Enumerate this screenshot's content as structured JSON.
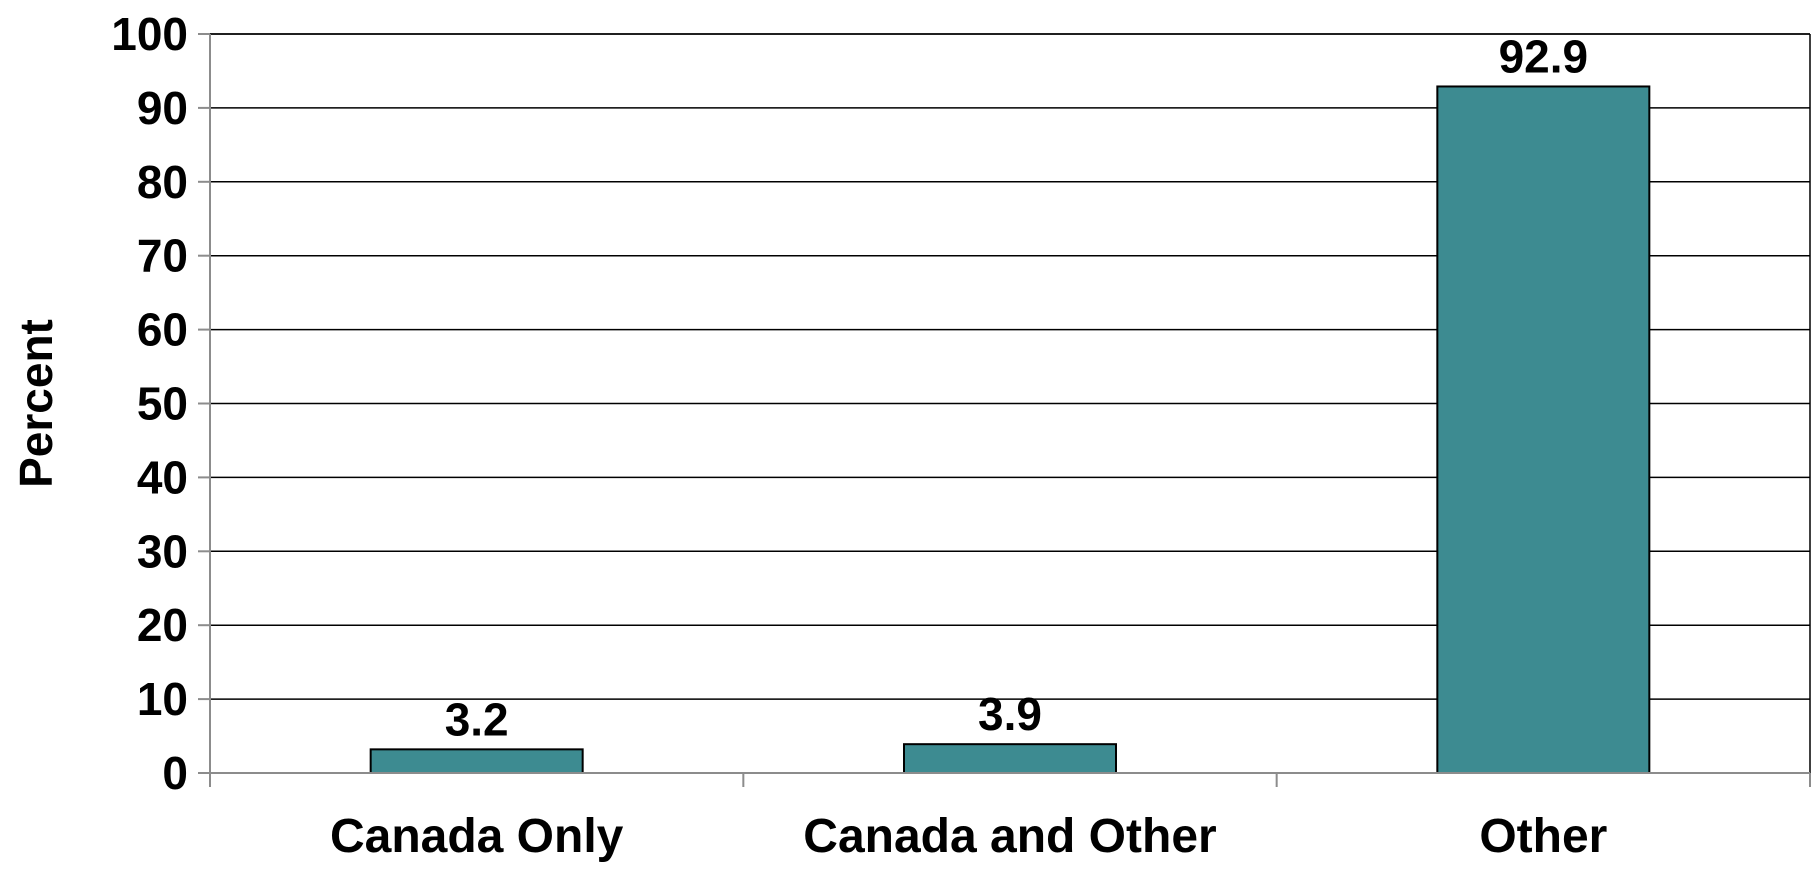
{
  "chart_data": {
    "type": "bar",
    "title": "",
    "xlabel": "",
    "ylabel": "Percent",
    "categories": [
      "Canada Only",
      "Canada and Other",
      "Other"
    ],
    "values": [
      3.2,
      3.9,
      92.9
    ],
    "data_labels": [
      "3.2",
      "3.9",
      "92.9"
    ],
    "ylim": [
      0,
      100
    ],
    "yticks": [
      "0",
      "10",
      "20",
      "30",
      "40",
      "50",
      "60",
      "70",
      "80",
      "90",
      "100"
    ],
    "grid": true,
    "legend": "none",
    "bar_color": "#3D8B91",
    "bar_border_color": "#000000"
  }
}
